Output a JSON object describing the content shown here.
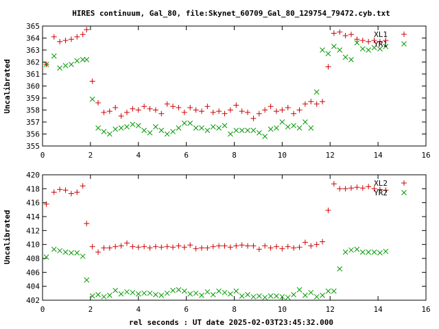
{
  "title": "HIRES continuum, Gal_80, file:Skynet_60709_Gal_80_129754_79472.cyb.txt",
  "colors": {
    "plus_series": "#cc0000",
    "cross_series": "#009900",
    "axis": "#000000",
    "background": "#ffffff"
  },
  "chart_data": [
    {
      "type": "scatter",
      "title": "HIRES continuum, Gal_80, file:Skynet_60709_Gal_80_129754_79472.cyb.txt",
      "xlabel": "",
      "ylabel": "Uncalibrated",
      "xlim": [
        0,
        16
      ],
      "ylim": [
        355,
        365
      ],
      "xticks": [
        0,
        2,
        4,
        6,
        8,
        10,
        12,
        14,
        16
      ],
      "yticks": [
        355,
        356,
        357,
        358,
        359,
        360,
        361,
        362,
        363,
        364,
        365
      ],
      "legend_position": "top-right",
      "series": [
        {
          "name": "XL1",
          "marker": "plus",
          "color": "#cc0000",
          "x": [
            0.16,
            0.48,
            0.72,
            0.96,
            1.2,
            1.44,
            1.68,
            1.84,
            2.08,
            2.32,
            2.56,
            2.8,
            3.04,
            3.28,
            3.52,
            3.76,
            4.0,
            4.24,
            4.48,
            4.72,
            4.96,
            5.2,
            5.44,
            5.68,
            5.92,
            6.16,
            6.4,
            6.64,
            6.88,
            7.12,
            7.36,
            7.6,
            7.84,
            8.08,
            8.32,
            8.56,
            8.8,
            9.04,
            9.28,
            9.52,
            9.76,
            10.0,
            10.24,
            10.48,
            10.72,
            10.96,
            11.2,
            11.44,
            11.68,
            11.92,
            12.16,
            12.4,
            12.64,
            12.88,
            13.12,
            13.36,
            13.6,
            13.84,
            14.08,
            14.32
          ],
          "y": [
            361.8,
            364.1,
            363.7,
            363.8,
            363.9,
            364.1,
            364.3,
            364.7,
            360.4,
            358.6,
            357.8,
            357.9,
            358.2,
            357.5,
            357.8,
            358.1,
            358.0,
            358.3,
            358.1,
            358.0,
            357.7,
            358.5,
            358.3,
            358.2,
            357.8,
            358.2,
            358.0,
            357.9,
            358.3,
            357.8,
            357.9,
            357.7,
            358.0,
            358.4,
            357.9,
            357.8,
            357.3,
            357.7,
            358.0,
            358.3,
            357.9,
            358.0,
            358.2,
            357.7,
            358.0,
            358.5,
            358.7,
            358.5,
            358.7,
            361.6,
            364.4,
            364.5,
            364.2,
            364.3,
            363.9,
            363.8,
            363.7,
            363.8,
            363.7,
            363.8
          ]
        },
        {
          "name": "YR1",
          "marker": "cross",
          "color": "#009900",
          "x": [
            0.16,
            0.48,
            0.72,
            0.96,
            1.2,
            1.44,
            1.68,
            1.84,
            2.08,
            2.32,
            2.56,
            2.8,
            3.04,
            3.28,
            3.52,
            3.76,
            4.0,
            4.24,
            4.48,
            4.72,
            4.96,
            5.2,
            5.44,
            5.68,
            5.92,
            6.16,
            6.4,
            6.64,
            6.88,
            7.12,
            7.36,
            7.6,
            7.84,
            8.08,
            8.32,
            8.56,
            8.8,
            9.04,
            9.28,
            9.52,
            9.76,
            10.0,
            10.24,
            10.48,
            10.72,
            10.96,
            11.2,
            11.44,
            11.68,
            11.92,
            12.16,
            12.4,
            12.64,
            12.88,
            13.12,
            13.36,
            13.6,
            13.84,
            14.08,
            14.32
          ],
          "y": [
            361.8,
            362.5,
            361.5,
            361.7,
            361.8,
            362.1,
            362.2,
            362.2,
            358.9,
            356.5,
            356.2,
            356.0,
            356.4,
            356.5,
            356.6,
            356.8,
            356.7,
            356.3,
            356.1,
            356.6,
            356.3,
            356.0,
            356.2,
            356.5,
            356.9,
            356.9,
            356.5,
            356.5,
            356.3,
            356.6,
            356.5,
            356.7,
            356.0,
            356.3,
            356.3,
            356.3,
            356.3,
            356.1,
            355.8,
            356.4,
            356.5,
            357.0,
            356.6,
            356.7,
            356.5,
            357.0,
            356.5,
            359.5,
            363.0,
            362.7,
            363.3,
            363.0,
            362.4,
            362.2,
            363.6,
            363.1,
            363.0,
            363.2,
            363.1,
            363.3
          ]
        }
      ]
    },
    {
      "type": "scatter",
      "title": "",
      "xlabel": "rel seconds : UT date 2025-02-03T23:45:32.000",
      "ylabel": "Uncalibrated",
      "xlim": [
        0,
        16
      ],
      "ylim": [
        402,
        420
      ],
      "xticks": [
        0,
        2,
        4,
        6,
        8,
        10,
        12,
        14,
        16
      ],
      "yticks": [
        402,
        404,
        406,
        408,
        410,
        412,
        414,
        416,
        418,
        420
      ],
      "legend_position": "top-right",
      "series": [
        {
          "name": "XL2",
          "marker": "plus",
          "color": "#cc0000",
          "x": [
            0.16,
            0.48,
            0.72,
            0.96,
            1.2,
            1.44,
            1.68,
            1.84,
            2.08,
            2.32,
            2.56,
            2.8,
            3.04,
            3.28,
            3.52,
            3.76,
            4.0,
            4.24,
            4.48,
            4.72,
            4.96,
            5.2,
            5.44,
            5.68,
            5.92,
            6.16,
            6.4,
            6.64,
            6.88,
            7.12,
            7.36,
            7.6,
            7.84,
            8.08,
            8.32,
            8.56,
            8.8,
            9.04,
            9.28,
            9.52,
            9.76,
            10.0,
            10.24,
            10.48,
            10.72,
            10.96,
            11.2,
            11.44,
            11.68,
            11.92,
            12.16,
            12.4,
            12.64,
            12.88,
            13.12,
            13.36,
            13.6,
            13.84,
            14.08,
            14.32
          ],
          "y": [
            415.8,
            417.5,
            417.9,
            417.8,
            417.3,
            417.5,
            418.4,
            413.0,
            409.7,
            408.9,
            409.5,
            409.5,
            409.7,
            409.8,
            410.2,
            409.7,
            409.6,
            409.7,
            409.5,
            409.7,
            409.6,
            409.7,
            409.6,
            409.8,
            409.6,
            409.9,
            409.4,
            409.5,
            409.5,
            409.7,
            409.8,
            409.8,
            409.6,
            409.8,
            409.9,
            409.8,
            409.8,
            409.3,
            409.8,
            409.5,
            409.7,
            409.4,
            409.7,
            409.5,
            409.6,
            410.3,
            409.8,
            410.0,
            410.4,
            414.9,
            418.7,
            418.0,
            418.0,
            418.1,
            418.2,
            418.1,
            418.3,
            418.0,
            417.9,
            417.8
          ]
        },
        {
          "name": "YR2",
          "marker": "cross",
          "color": "#009900",
          "x": [
            0.16,
            0.48,
            0.72,
            0.96,
            1.2,
            1.44,
            1.68,
            1.84,
            2.08,
            2.32,
            2.56,
            2.8,
            3.04,
            3.28,
            3.52,
            3.76,
            4.0,
            4.24,
            4.48,
            4.72,
            4.96,
            5.2,
            5.44,
            5.68,
            5.92,
            6.16,
            6.4,
            6.64,
            6.88,
            7.12,
            7.36,
            7.6,
            7.84,
            8.08,
            8.32,
            8.56,
            8.8,
            9.04,
            9.28,
            9.52,
            9.76,
            10.0,
            10.24,
            10.48,
            10.72,
            10.96,
            11.2,
            11.44,
            11.68,
            11.92,
            12.16,
            12.4,
            12.64,
            12.88,
            13.12,
            13.36,
            13.6,
            13.84,
            14.08,
            14.32
          ],
          "y": [
            408.2,
            409.3,
            409.1,
            408.9,
            408.8,
            408.8,
            408.3,
            404.9,
            402.6,
            402.8,
            402.5,
            402.7,
            403.4,
            402.9,
            403.2,
            403.1,
            402.9,
            403.0,
            403.0,
            402.8,
            402.7,
            403.0,
            403.4,
            403.5,
            403.3,
            402.9,
            403.0,
            402.7,
            403.2,
            402.8,
            403.3,
            403.1,
            402.9,
            403.3,
            402.6,
            402.8,
            402.5,
            402.6,
            402.4,
            402.6,
            402.6,
            402.5,
            402.4,
            402.8,
            403.5,
            402.7,
            403.1,
            402.5,
            402.7,
            403.3,
            403.3,
            406.5,
            408.9,
            409.2,
            409.3,
            408.9,
            408.9,
            408.9,
            408.8,
            409.0
          ]
        }
      ]
    }
  ]
}
